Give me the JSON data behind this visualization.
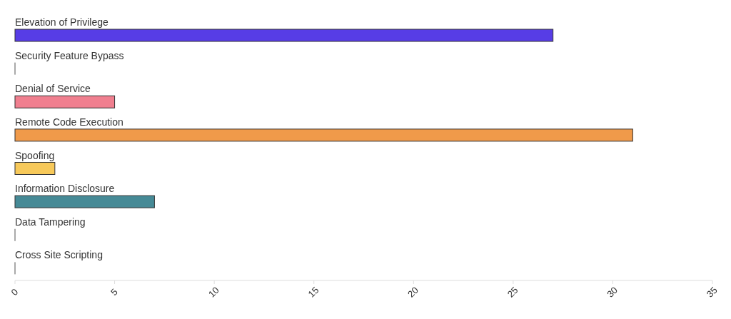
{
  "chart_data": {
    "type": "bar",
    "orientation": "horizontal",
    "categories": [
      "Elevation of Privilege",
      "Security Feature Bypass",
      "Denial of Service",
      "Remote Code Execution",
      "Spoofing",
      "Information Disclosure",
      "Data Tampering",
      "Cross Site Scripting"
    ],
    "values": [
      27,
      0,
      5,
      31,
      2,
      7,
      0,
      0
    ],
    "colors": [
      "#573de6",
      "#555555",
      "#f07f8f",
      "#f09a4a",
      "#f7c95a",
      "#468a96",
      "#555555",
      "#555555"
    ],
    "xlim": [
      0,
      35
    ],
    "xticks": [
      0,
      5,
      10,
      15,
      20,
      25,
      30,
      35
    ],
    "grid": false
  }
}
